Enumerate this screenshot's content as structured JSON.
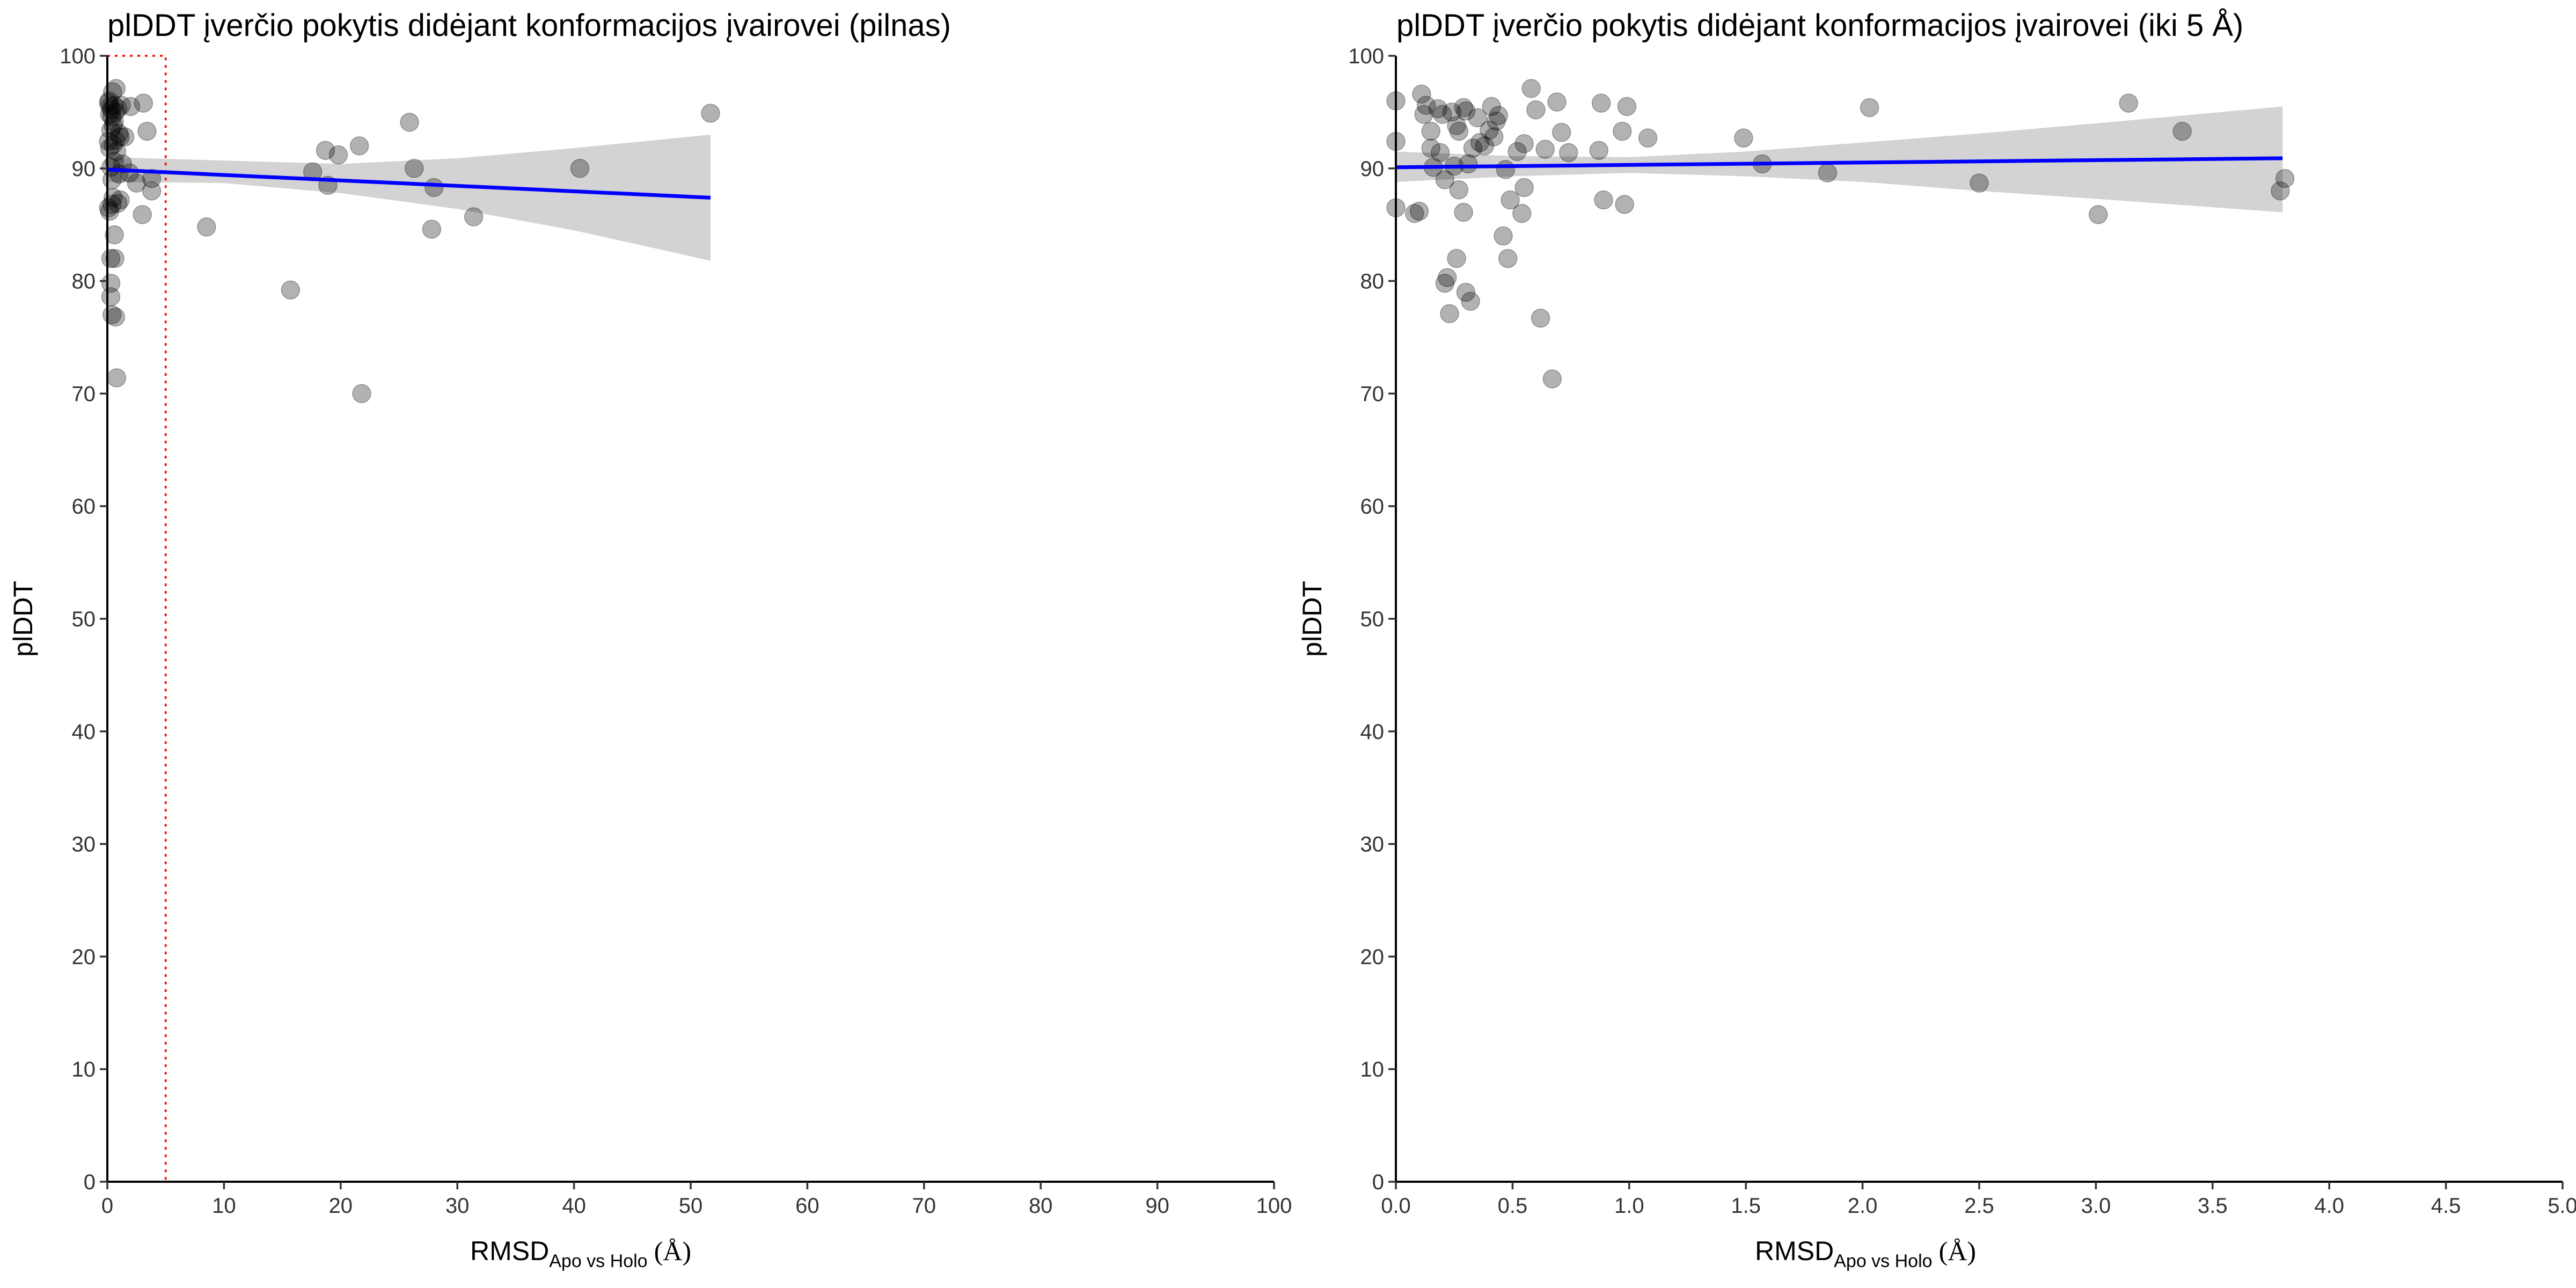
{
  "colors": {
    "point": "#000000",
    "fit_line": "#0000FF",
    "confidence_band": "#D3D3D3",
    "zoom_box": "#FF0000"
  },
  "chart_data": [
    {
      "type": "scatter",
      "title": "plDDT įverčio pokytis didėjant konformacijos įvairovei (pilnas)",
      "xlabel": "RMSD",
      "xlabel_subscript": "Apo vs Holo",
      "xlabel_unit": "(Å)",
      "ylabel": "plDDT",
      "xlim": [
        0,
        100
      ],
      "ylim": [
        0,
        100
      ],
      "x_ticks": [
        0,
        10,
        20,
        30,
        40,
        50,
        60,
        70,
        80,
        90,
        100
      ],
      "x_tick_labels": [
        "0",
        "10",
        "20",
        "30",
        "40",
        "50",
        "60",
        "70",
        "80",
        "90",
        "100"
      ],
      "y_ticks": [
        0,
        10,
        20,
        30,
        40,
        50,
        60,
        70,
        80,
        90,
        100
      ],
      "y_tick_labels": [
        "0",
        "10",
        "20",
        "30",
        "40",
        "50",
        "60",
        "70",
        "80",
        "90",
        "100"
      ],
      "zoom_box": {
        "x": [
          0,
          5
        ],
        "y": [
          0,
          100
        ]
      },
      "fit": {
        "x": [
          0,
          51.7
        ],
        "y": [
          89.9,
          87.4
        ]
      },
      "band": {
        "x": [
          0,
          10,
          20,
          30,
          40,
          51.7
        ],
        "lower": [
          88.8,
          88.7,
          87.8,
          86.4,
          84.5,
          81.8
        ],
        "upper": [
          91.0,
          90.7,
          90.4,
          90.9,
          91.8,
          93.0
        ]
      },
      "points": [
        {
          "x": 0.1,
          "y": 95.8
        },
        {
          "x": 0.1,
          "y": 92.4
        },
        {
          "x": 0.1,
          "y": 86.5
        },
        {
          "x": 0.15,
          "y": 96.0
        },
        {
          "x": 0.2,
          "y": 94.8
        },
        {
          "x": 0.2,
          "y": 91.8
        },
        {
          "x": 0.2,
          "y": 86.2
        },
        {
          "x": 0.25,
          "y": 95.5
        },
        {
          "x": 0.3,
          "y": 93.4
        },
        {
          "x": 0.3,
          "y": 90.1
        },
        {
          "x": 0.3,
          "y": 82.0
        },
        {
          "x": 0.3,
          "y": 79.8
        },
        {
          "x": 0.3,
          "y": 78.6
        },
        {
          "x": 0.35,
          "y": 95.2
        },
        {
          "x": 0.4,
          "y": 94.6
        },
        {
          "x": 0.4,
          "y": 89.0
        },
        {
          "x": 0.4,
          "y": 86.8
        },
        {
          "x": 0.4,
          "y": 77.0
        },
        {
          "x": 0.45,
          "y": 96.8
        },
        {
          "x": 0.5,
          "y": 93.8
        },
        {
          "x": 0.5,
          "y": 92.1
        },
        {
          "x": 0.5,
          "y": 87.4
        },
        {
          "x": 0.55,
          "y": 95.6
        },
        {
          "x": 0.6,
          "y": 94.1
        },
        {
          "x": 0.6,
          "y": 90.6
        },
        {
          "x": 0.6,
          "y": 84.1
        },
        {
          "x": 0.65,
          "y": 82.0
        },
        {
          "x": 0.7,
          "y": 95.0
        },
        {
          "x": 0.7,
          "y": 92.5
        },
        {
          "x": 0.7,
          "y": 76.8
        },
        {
          "x": 0.75,
          "y": 97.1
        },
        {
          "x": 0.8,
          "y": 91.5
        },
        {
          "x": 0.8,
          "y": 71.4
        },
        {
          "x": 0.9,
          "y": 95.3
        },
        {
          "x": 0.9,
          "y": 86.9
        },
        {
          "x": 1.0,
          "y": 93.1
        },
        {
          "x": 1.0,
          "y": 89.5
        },
        {
          "x": 1.1,
          "y": 92.8
        },
        {
          "x": 1.1,
          "y": 87.2
        },
        {
          "x": 1.2,
          "y": 95.6
        },
        {
          "x": 1.3,
          "y": 90.4
        },
        {
          "x": 1.5,
          "y": 92.8
        },
        {
          "x": 1.9,
          "y": 89.6
        },
        {
          "x": 2.0,
          "y": 95.5
        },
        {
          "x": 2.5,
          "y": 88.7
        },
        {
          "x": 3.0,
          "y": 85.9
        },
        {
          "x": 3.1,
          "y": 95.8
        },
        {
          "x": 3.4,
          "y": 93.3
        },
        {
          "x": 3.8,
          "y": 88.0
        },
        {
          "x": 3.8,
          "y": 89.1
        },
        {
          "x": 8.5,
          "y": 84.8
        },
        {
          "x": 15.7,
          "y": 79.2
        },
        {
          "x": 17.6,
          "y": 89.7
        },
        {
          "x": 18.7,
          "y": 91.6
        },
        {
          "x": 18.9,
          "y": 88.5
        },
        {
          "x": 19.8,
          "y": 91.2
        },
        {
          "x": 21.6,
          "y": 92.0
        },
        {
          "x": 21.8,
          "y": 70.0
        },
        {
          "x": 25.9,
          "y": 94.1
        },
        {
          "x": 26.3,
          "y": 90.0
        },
        {
          "x": 27.8,
          "y": 84.6
        },
        {
          "x": 28.0,
          "y": 88.3
        },
        {
          "x": 31.4,
          "y": 85.7
        },
        {
          "x": 40.5,
          "y": 90.0
        },
        {
          "x": 51.7,
          "y": 94.9
        }
      ]
    },
    {
      "type": "scatter",
      "title": "plDDT įverčio pokytis didėjant konformacijos įvairovei (iki 5 Å)",
      "xlabel": "RMSD",
      "xlabel_subscript": "Apo vs Holo",
      "xlabel_unit": "(Å)",
      "ylabel": "plDDT",
      "xlim": [
        0,
        5
      ],
      "ylim": [
        0,
        100
      ],
      "x_ticks": [
        0,
        0.5,
        1,
        1.5,
        2,
        2.5,
        3,
        3.5,
        4,
        4.5,
        5
      ],
      "x_tick_labels": [
        "0.0",
        "0.5",
        "1.0",
        "1.5",
        "2.0",
        "2.5",
        "3.0",
        "3.5",
        "4.0",
        "4.5",
        "5.0"
      ],
      "y_ticks": [
        0,
        10,
        20,
        30,
        40,
        50,
        60,
        70,
        80,
        90,
        100
      ],
      "y_tick_labels": [
        "0",
        "10",
        "20",
        "30",
        "40",
        "50",
        "60",
        "70",
        "80",
        "90",
        "100"
      ],
      "fit": {
        "x": [
          0,
          3.8
        ],
        "y": [
          90.1,
          90.9
        ]
      },
      "band": {
        "x": [
          0,
          0.5,
          1,
          1.5,
          2,
          2.5,
          3,
          3.8
        ],
        "lower": [
          88.8,
          89.3,
          89.6,
          89.3,
          88.8,
          88.0,
          87.3,
          86.1
        ],
        "upper": [
          91.5,
          91.1,
          91.0,
          91.5,
          92.3,
          93.1,
          94.0,
          95.5
        ]
      },
      "points": [
        {
          "x": 0.0,
          "y": 96.0
        },
        {
          "x": 0.0,
          "y": 92.4
        },
        {
          "x": 0.0,
          "y": 86.5
        },
        {
          "x": 0.08,
          "y": 86.0
        },
        {
          "x": 0.1,
          "y": 86.2
        },
        {
          "x": 0.11,
          "y": 96.6
        },
        {
          "x": 0.12,
          "y": 94.8
        },
        {
          "x": 0.13,
          "y": 95.6
        },
        {
          "x": 0.15,
          "y": 93.3
        },
        {
          "x": 0.15,
          "y": 91.8
        },
        {
          "x": 0.16,
          "y": 90.1
        },
        {
          "x": 0.18,
          "y": 95.3
        },
        {
          "x": 0.19,
          "y": 91.4
        },
        {
          "x": 0.2,
          "y": 94.8
        },
        {
          "x": 0.21,
          "y": 89.0
        },
        {
          "x": 0.21,
          "y": 79.8
        },
        {
          "x": 0.22,
          "y": 80.3
        },
        {
          "x": 0.23,
          "y": 77.1
        },
        {
          "x": 0.24,
          "y": 95.0
        },
        {
          "x": 0.25,
          "y": 90.2
        },
        {
          "x": 0.26,
          "y": 82.0
        },
        {
          "x": 0.26,
          "y": 93.8
        },
        {
          "x": 0.27,
          "y": 93.3
        },
        {
          "x": 0.27,
          "y": 88.1
        },
        {
          "x": 0.29,
          "y": 95.4
        },
        {
          "x": 0.29,
          "y": 86.1
        },
        {
          "x": 0.3,
          "y": 95.1
        },
        {
          "x": 0.3,
          "y": 79.0
        },
        {
          "x": 0.31,
          "y": 90.4
        },
        {
          "x": 0.32,
          "y": 78.2
        },
        {
          "x": 0.33,
          "y": 91.8
        },
        {
          "x": 0.35,
          "y": 94.5
        },
        {
          "x": 0.36,
          "y": 92.3
        },
        {
          "x": 0.38,
          "y": 92.0
        },
        {
          "x": 0.4,
          "y": 93.4
        },
        {
          "x": 0.41,
          "y": 95.5
        },
        {
          "x": 0.42,
          "y": 92.8
        },
        {
          "x": 0.43,
          "y": 94.2
        },
        {
          "x": 0.44,
          "y": 94.7
        },
        {
          "x": 0.46,
          "y": 84.0
        },
        {
          "x": 0.47,
          "y": 89.9
        },
        {
          "x": 0.48,
          "y": 82.0
        },
        {
          "x": 0.49,
          "y": 87.2
        },
        {
          "x": 0.52,
          "y": 91.5
        },
        {
          "x": 0.54,
          "y": 86.0
        },
        {
          "x": 0.55,
          "y": 88.3
        },
        {
          "x": 0.55,
          "y": 92.2
        },
        {
          "x": 0.58,
          "y": 97.1
        },
        {
          "x": 0.6,
          "y": 95.2
        },
        {
          "x": 0.62,
          "y": 76.7
        },
        {
          "x": 0.64,
          "y": 91.7
        },
        {
          "x": 0.67,
          "y": 71.3
        },
        {
          "x": 0.69,
          "y": 95.9
        },
        {
          "x": 0.71,
          "y": 93.2
        },
        {
          "x": 0.74,
          "y": 91.4
        },
        {
          "x": 0.87,
          "y": 91.6
        },
        {
          "x": 0.88,
          "y": 95.8
        },
        {
          "x": 0.89,
          "y": 87.2
        },
        {
          "x": 0.97,
          "y": 93.3
        },
        {
          "x": 0.98,
          "y": 86.8
        },
        {
          "x": 0.99,
          "y": 95.5
        },
        {
          "x": 1.08,
          "y": 92.7
        },
        {
          "x": 1.49,
          "y": 92.7
        },
        {
          "x": 1.57,
          "y": 90.4
        },
        {
          "x": 1.85,
          "y": 89.6
        },
        {
          "x": 2.03,
          "y": 95.4
        },
        {
          "x": 2.5,
          "y": 88.7
        },
        {
          "x": 3.01,
          "y": 85.9
        },
        {
          "x": 3.14,
          "y": 95.8
        },
        {
          "x": 3.37,
          "y": 93.3
        },
        {
          "x": 3.79,
          "y": 88.0
        },
        {
          "x": 3.81,
          "y": 89.1
        }
      ]
    }
  ]
}
